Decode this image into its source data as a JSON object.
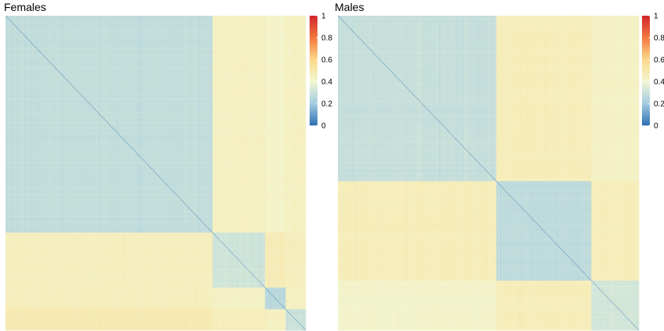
{
  "chart_data": [
    {
      "type": "heatmap",
      "title": "Females",
      "xlabel": "",
      "ylabel": "",
      "cluster_sizes": [
        1500,
        380,
        150,
        145
      ],
      "block_matrix": [
        [
          0.28,
          0.45,
          0.43,
          0.45
        ],
        [
          0.46,
          0.31,
          0.48,
          0.46
        ],
        [
          0.46,
          0.44,
          0.26,
          0.45
        ],
        [
          0.49,
          0.47,
          0.45,
          0.3
        ]
      ],
      "diagonal_value": 0,
      "colorbar": {
        "ticks": [
          0,
          0.2,
          0.4,
          0.6,
          0.8,
          1
        ],
        "tick_labels": [
          "0",
          "0.2",
          "0.4",
          "0.6",
          "0.8",
          "1"
        ],
        "range": [
          0,
          1
        ],
        "colors": [
          "#2E70B4",
          "#A3CCE0",
          "#F2F7D4",
          "#FCD98B",
          "#F2783E",
          "#D0262E"
        ]
      }
    },
    {
      "type": "heatmap",
      "title": "Males",
      "xlabel": "",
      "ylabel": "",
      "cluster_sizes": [
        200,
        120,
        60
      ],
      "block_matrix": [
        [
          0.29,
          0.47,
          0.44
        ],
        [
          0.47,
          0.27,
          0.47
        ],
        [
          0.42,
          0.47,
          0.32
        ]
      ],
      "diagonal_value": 0,
      "colorbar": {
        "ticks": [
          0,
          0.2,
          0.4,
          0.6,
          0.8,
          1
        ],
        "tick_labels": [
          "0",
          "0.2",
          "0.4",
          "0.6",
          "0.8",
          "1"
        ],
        "range": [
          0,
          1
        ],
        "colors": [
          "#2E70B4",
          "#A3CCE0",
          "#F2F7D4",
          "#FCD98B",
          "#F2783E",
          "#D0262E"
        ]
      }
    }
  ]
}
